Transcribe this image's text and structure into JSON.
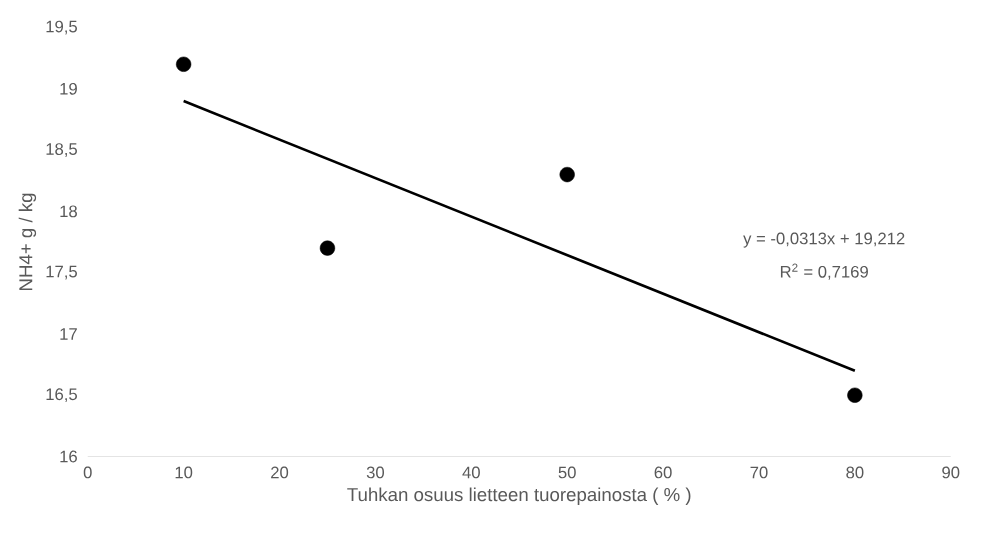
{
  "chart_data": {
    "type": "scatter",
    "xlabel": "Tuhkan osuus lietteen tuorepainosta ( % )",
    "ylabel": "NH4+  g / kg",
    "series": [
      {
        "color": "#000000",
        "marker": "circle",
        "x": [
          10,
          25,
          50,
          80
        ],
        "values": [
          19.2,
          17.7,
          18.3,
          16.5
        ]
      },
      {
        "type": "line",
        "color": "#000000",
        "marker": "none",
        "line_style": "solid",
        "x": [
          10,
          80
        ],
        "values": [
          18.9,
          16.7
        ]
      }
    ],
    "annotations": [
      "y = -0,0313x + 19,212",
      "R$^{2}$ = 0,7169"
    ],
    "xlim": [
      0,
      90
    ],
    "xticks": [
      0,
      10,
      20,
      30,
      40,
      50,
      60,
      70,
      80,
      90
    ],
    "ylim": [
      16,
      19.5
    ],
    "yticks": [
      16,
      {
        "value": 16.5,
        "label": "16,5"
      },
      17,
      {
        "value": 17.5,
        "label": "17,5"
      },
      18,
      {
        "value": 18.5,
        "label": "18,5"
      },
      19,
      {
        "value": 19.5,
        "label": "19,5"
      }
    ],
    "grid": false
  }
}
